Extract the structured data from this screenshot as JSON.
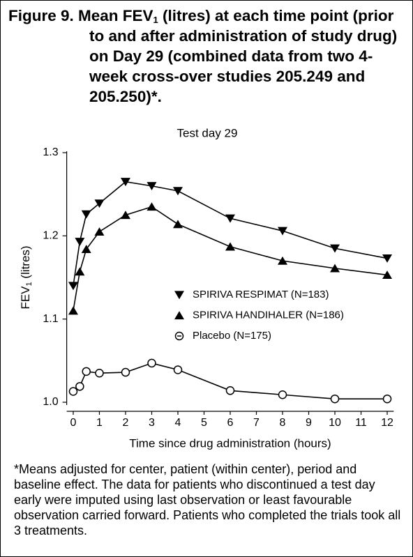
{
  "chart_data": {
    "type": "line",
    "title": {
      "before": "Figure 9. Mean FEV",
      "subscript": "1",
      "after": " (litres) at each time point (prior to and after administration of study drug) on Day 29 (combined data from two 4-week cross-over studies 205.249 and 205.250)*."
    },
    "subtitle": "Test day 29",
    "xlabel": "Time since drug administration (hours)",
    "ylabel": {
      "before": "FEV",
      "subscript": "1",
      "after": " (litres)"
    },
    "x": [
      0,
      0.25,
      0.5,
      1,
      2,
      3,
      4,
      6,
      8,
      10,
      12
    ],
    "series": [
      {
        "name": "SPIRIVA RESPIMAT (N=183)",
        "color": "#000000",
        "marker": "triangle-down",
        "values": [
          1.14,
          1.193,
          1.226,
          1.239,
          1.265,
          1.26,
          1.254,
          1.221,
          1.206,
          1.185,
          1.173
        ]
      },
      {
        "name": "SPIRIVA HANDIHALER (N=186)",
        "color": "#000000",
        "marker": "triangle-up",
        "values": [
          1.11,
          1.157,
          1.184,
          1.205,
          1.225,
          1.235,
          1.214,
          1.187,
          1.17,
          1.161,
          1.153
        ]
      },
      {
        "name": "Placebo (N=175)",
        "color": "#000000",
        "marker": "open-circle",
        "values": [
          1.013,
          1.019,
          1.037,
          1.035,
          1.036,
          1.047,
          1.039,
          1.014,
          1.009,
          1.004,
          1.004
        ]
      }
    ],
    "xlim": [
      -0.25,
      12.25
    ],
    "xticks": [
      0,
      1,
      2,
      3,
      4,
      5,
      6,
      7,
      8,
      9,
      10,
      11,
      12
    ],
    "ylim": [
      1.0,
      1.3
    ],
    "yticks": [
      {
        "value": 1.0,
        "label": "1.0"
      },
      1.1,
      1.2,
      1.3
    ],
    "grid": false
  },
  "notes": "*Means adjusted for center, patient (within center), period and baseline effect. The data for patients who discontinued a test day early were imputed using last observation or least favourable observation carried forward. Patients who completed the trials took all 3 treatments."
}
